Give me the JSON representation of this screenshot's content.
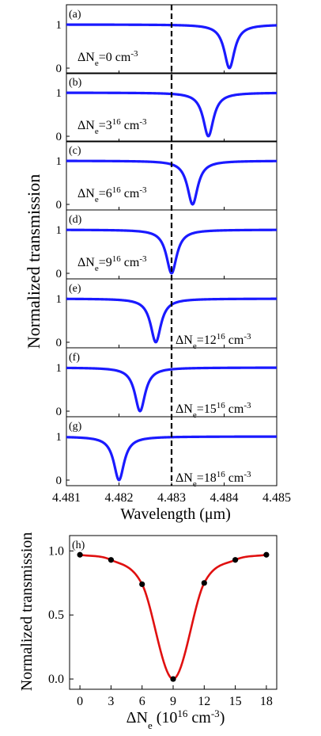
{
  "figure": {
    "top_ylabel": "Normalized transmission",
    "top_xlabel": "Wavelength (μm)",
    "bottom_ylabel": "Normalized transmission",
    "bottom_xlabel_prefix": "ΔN",
    "bottom_xlabel_sub": "e",
    "bottom_xlabel_suffix": " (10",
    "bottom_xlabel_sup": "16",
    "bottom_xlabel_unit": " cm",
    "bottom_xlabel_unit_sup": "-3",
    "bottom_xlabel_close": ")"
  },
  "chart_data": [
    {
      "type": "line",
      "panels": [
        {
          "label": "(a)",
          "annotation": {
            "prefix": "ΔN",
            "sub": "e",
            "value": "=0",
            "value_sup": "",
            "unit": " cm",
            "unit_sup": "-3"
          },
          "resonance_um": 4.4841,
          "min_transmission": 0.0
        },
        {
          "label": "(b)",
          "annotation": {
            "prefix": "ΔN",
            "sub": "e",
            "value": "=3",
            "value_sup": "16",
            "unit": " cm",
            "unit_sup": "-3"
          },
          "resonance_um": 4.4837,
          "min_transmission": 0.0
        },
        {
          "label": "(c)",
          "annotation": {
            "prefix": "ΔN",
            "sub": "e",
            "value": "=6",
            "value_sup": "16",
            "unit": " cm",
            "unit_sup": "-3"
          },
          "resonance_um": 4.4834,
          "min_transmission": 0.0
        },
        {
          "label": "(d)",
          "annotation": {
            "prefix": "ΔN",
            "sub": "e",
            "value": "=9",
            "value_sup": "16",
            "unit": " cm",
            "unit_sup": "-3"
          },
          "resonance_um": 4.483,
          "min_transmission": 0.0
        },
        {
          "label": "(e)",
          "annotation": {
            "prefix": "ΔN",
            "sub": "e",
            "value": "=12",
            "value_sup": "16",
            "unit": " cm",
            "unit_sup": "-3"
          },
          "resonance_um": 4.4827,
          "min_transmission": 0.0
        },
        {
          "label": "(f)",
          "annotation": {
            "prefix": "ΔN",
            "sub": "e",
            "value": "=15",
            "value_sup": "16",
            "unit": " cm",
            "unit_sup": "-3"
          },
          "resonance_um": 4.4824,
          "min_transmission": 0.0
        },
        {
          "label": "(g)",
          "annotation": {
            "prefix": "ΔN",
            "sub": "e",
            "value": "=18",
            "value_sup": "16",
            "unit": " cm",
            "unit_sup": "-3"
          },
          "resonance_um": 4.482,
          "min_transmission": 0.0
        }
      ],
      "xlim": [
        4.481,
        4.485
      ],
      "xticks": [
        "4.481",
        "4.482",
        "4.483",
        "4.484",
        "4.485"
      ],
      "ylim": [
        0,
        1
      ],
      "yticks": [
        "0",
        "1"
      ],
      "linewidth_um": 0.00012,
      "dashed_line_x": 4.483,
      "series_color": "#1a1aff",
      "grid": false
    },
    {
      "type": "scatter",
      "label": "(h)",
      "x": [
        0,
        3,
        6,
        9,
        12,
        15,
        18
      ],
      "y": [
        0.97,
        0.93,
        0.74,
        0.0,
        0.75,
        0.93,
        0.97
      ],
      "xticks": [
        "0",
        "3",
        "6",
        "9",
        "12",
        "15",
        "18"
      ],
      "yticks": [
        "0.0",
        "0.5",
        "1.0"
      ],
      "xlim": [
        -1,
        19
      ],
      "ylim": [
        -0.08,
        1.12
      ],
      "fit_color": "#e01010",
      "marker_color": "#000000",
      "grid": false
    }
  ]
}
